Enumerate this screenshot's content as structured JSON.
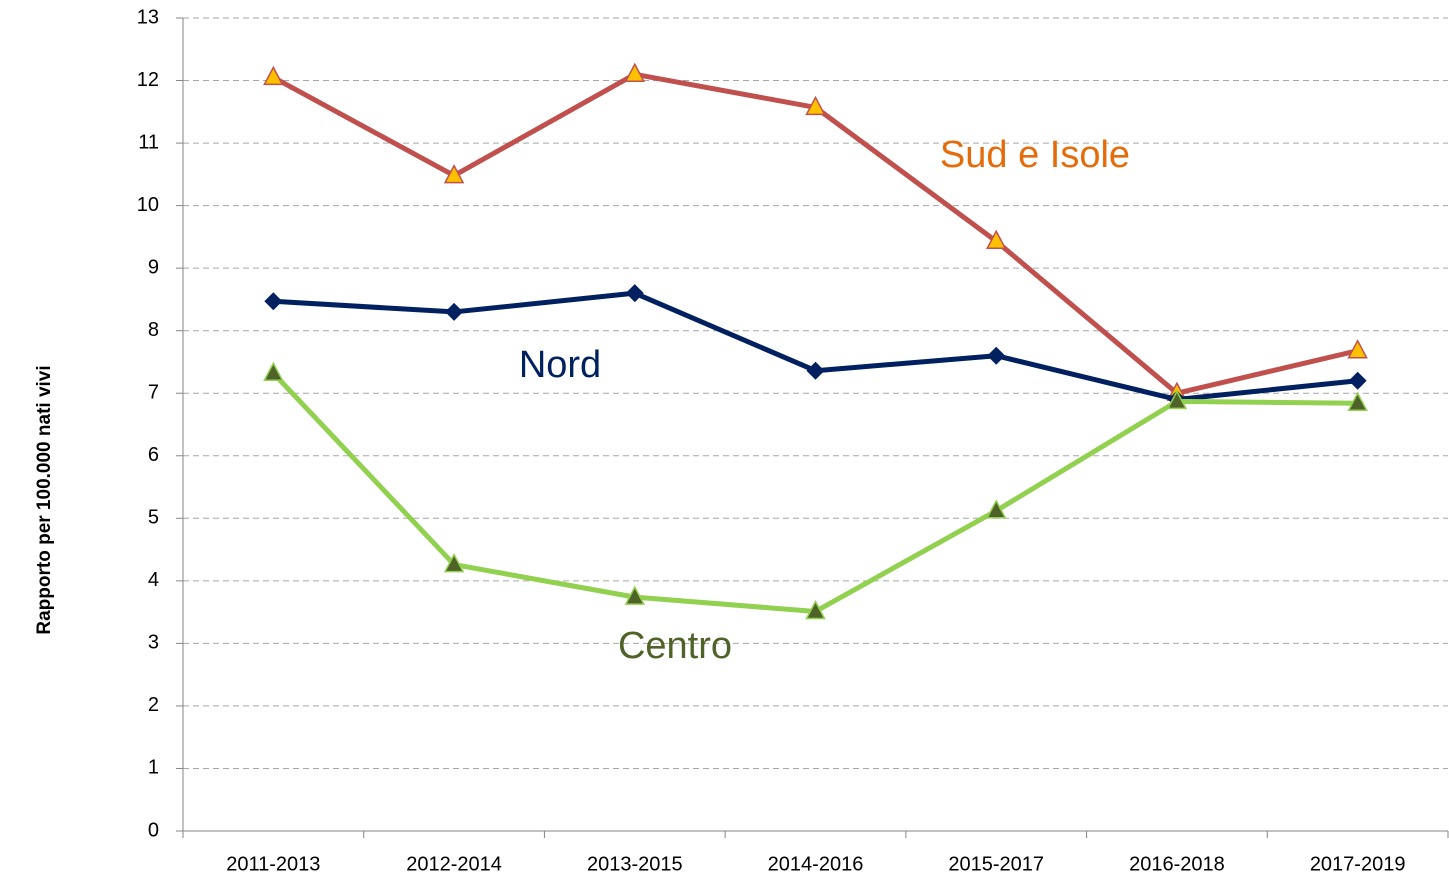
{
  "chart_data": {
    "type": "line",
    "y_label": "Rapporto per 100.000 nati vivi",
    "categories": [
      "2011-2013",
      "2012-2014",
      "2013-2015",
      "2014-2016",
      "2015-2017",
      "2016-2018",
      "2017-2019"
    ],
    "series": [
      {
        "name": "Sud e Isole",
        "color": "#c0504d",
        "marker": "triangle",
        "marker_color": "#ffc000",
        "label_color": "#e46c0a",
        "values": [
          12.05,
          10.48,
          12.1,
          11.57,
          9.43,
          7.0,
          7.68
        ]
      },
      {
        "name": "Nord",
        "color": "#002060",
        "marker": "diamond",
        "marker_color": "#002060",
        "label_color": "#002060",
        "values": [
          8.47,
          8.3,
          8.6,
          7.36,
          7.6,
          6.9,
          7.2
        ]
      },
      {
        "name": "Centro",
        "color": "#92d050",
        "marker": "triangle",
        "marker_color": "#4f6228",
        "label_color": "#4f6228",
        "values": [
          7.32,
          4.26,
          3.74,
          3.51,
          5.12,
          6.87,
          6.84
        ]
      }
    ],
    "ylim": [
      0,
      13
    ],
    "yticks": [
      0,
      1,
      2,
      3,
      4,
      5,
      6,
      7,
      8,
      9,
      10,
      11,
      12,
      13
    ],
    "grid": true
  }
}
